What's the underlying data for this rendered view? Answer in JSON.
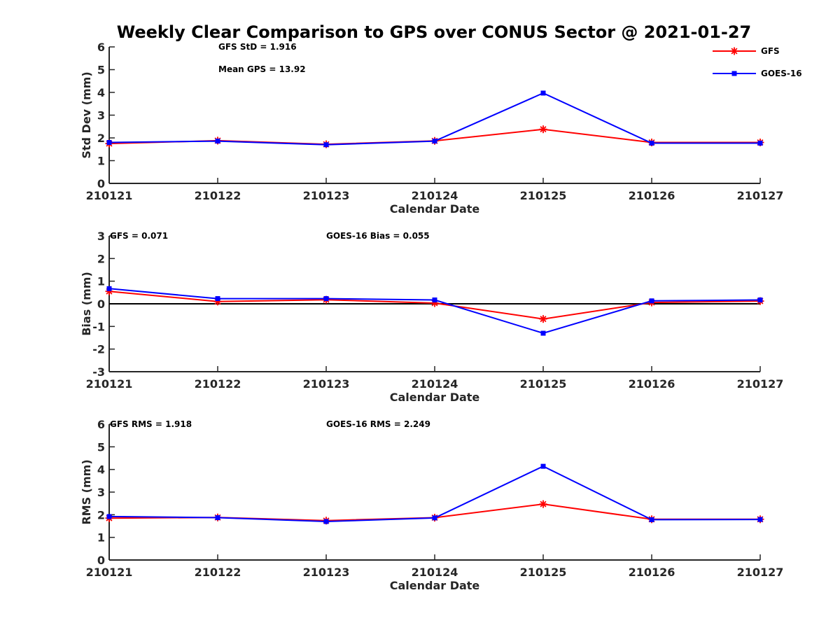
{
  "title": "Weekly Clear Comparison to GPS over CONUS Sector @ 2021-01-27",
  "legend": {
    "placement": "top-right",
    "entries": [
      {
        "name": "GFS",
        "color": "#ff0000",
        "marker": "asterisk"
      },
      {
        "name": "GOES-16",
        "color": "#0000ff",
        "marker": "square"
      }
    ]
  },
  "chart_data": [
    {
      "type": "line",
      "xlabel": "Calendar Date",
      "ylabel": "Std Dev (mm)",
      "categories": [
        "210121",
        "210122",
        "210123",
        "210124",
        "210125",
        "210126",
        "210127"
      ],
      "ylim": [
        0,
        6
      ],
      "yticks": [
        "0",
        "1",
        "2",
        "3",
        "4",
        "5",
        "6"
      ],
      "zero_line": false,
      "annotations": [
        "GFS StD = 1.916",
        "Mean GPS = 13.92"
      ],
      "series": [
        {
          "name": "GFS",
          "color": "#ff0000",
          "marker": "asterisk",
          "values": [
            1.75,
            1.88,
            1.72,
            1.87,
            2.38,
            1.8,
            1.8
          ]
        },
        {
          "name": "GOES-16",
          "color": "#0000ff",
          "marker": "square",
          "values": [
            1.8,
            1.86,
            1.7,
            1.86,
            3.97,
            1.77,
            1.77
          ]
        }
      ]
    },
    {
      "type": "line",
      "xlabel": "Calendar Date",
      "ylabel": "Bias (mm)",
      "categories": [
        "210121",
        "210122",
        "210123",
        "210124",
        "210125",
        "210126",
        "210127"
      ],
      "ylim": [
        -3,
        3
      ],
      "yticks": [
        "-3",
        "-2",
        "-1",
        "0",
        "1",
        "2",
        "3"
      ],
      "zero_line": true,
      "annotations": [
        "GFS = 0.071",
        "GOES-16 Bias  = 0.055"
      ],
      "series": [
        {
          "name": "GFS",
          "color": "#ff0000",
          "marker": "asterisk",
          "values": [
            0.55,
            0.1,
            0.18,
            0.03,
            -0.67,
            0.06,
            0.12
          ]
        },
        {
          "name": "GOES-16",
          "color": "#0000ff",
          "marker": "square",
          "values": [
            0.67,
            0.23,
            0.23,
            0.17,
            -1.3,
            0.13,
            0.17
          ]
        }
      ]
    },
    {
      "type": "line",
      "xlabel": "Calendar Date",
      "ylabel": "RMS (mm)",
      "categories": [
        "210121",
        "210122",
        "210123",
        "210124",
        "210125",
        "210126",
        "210127"
      ],
      "ylim": [
        0,
        6
      ],
      "yticks": [
        "0",
        "1",
        "2",
        "3",
        "4",
        "5",
        "6"
      ],
      "zero_line": false,
      "annotations": [
        "GFS RMS = 1.918",
        "GOES-16 RMS = 2.249"
      ],
      "series": [
        {
          "name": "GFS",
          "color": "#ff0000",
          "marker": "asterisk",
          "values": [
            1.85,
            1.88,
            1.74,
            1.87,
            2.47,
            1.8,
            1.8
          ]
        },
        {
          "name": "GOES-16",
          "color": "#0000ff",
          "marker": "square",
          "values": [
            1.92,
            1.87,
            1.7,
            1.86,
            4.14,
            1.78,
            1.79
          ]
        }
      ]
    }
  ]
}
